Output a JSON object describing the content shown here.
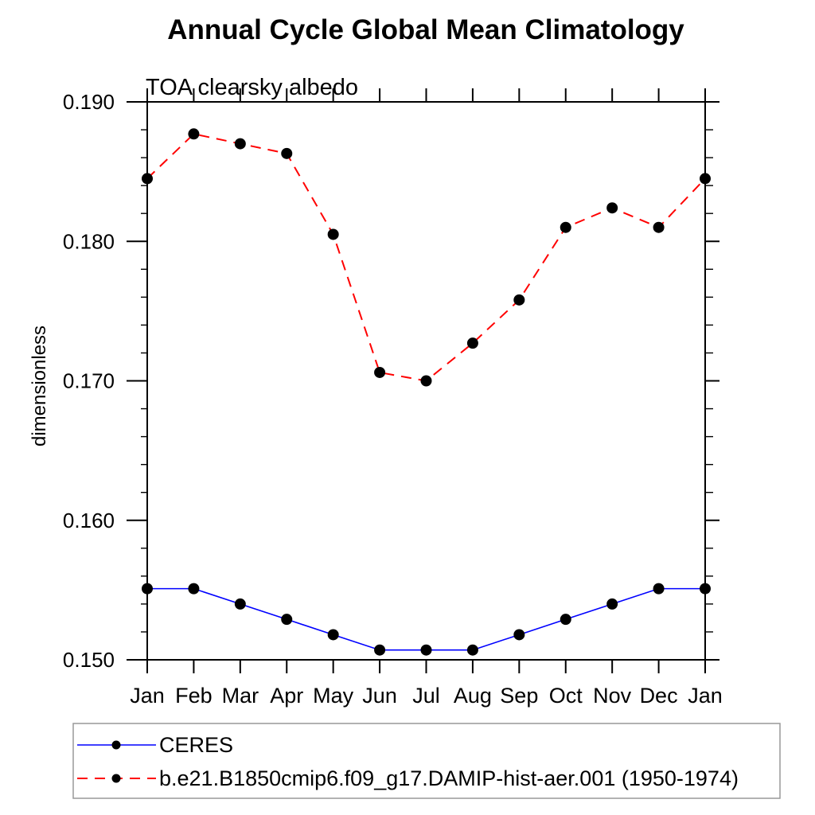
{
  "chart_data": {
    "type": "line",
    "title": "Annual Cycle Global Mean Climatology",
    "subtitle": "TOA clearsky albedo",
    "ylabel": "dimensionless",
    "x_categories": [
      "Jan",
      "Feb",
      "Mar",
      "Apr",
      "May",
      "Jun",
      "Jul",
      "Aug",
      "Sep",
      "Oct",
      "Nov",
      "Dec",
      "Jan"
    ],
    "ylim": [
      0.15,
      0.19
    ],
    "y_major_ticks": [
      0.15,
      0.16,
      0.17,
      0.18,
      0.19
    ],
    "y_tick_labels": [
      "0.150",
      "0.160",
      "0.170",
      "0.180",
      "0.190"
    ],
    "y_minor_tick_step": 0.002,
    "grid": false,
    "legend_position": "bottom-box",
    "marker_color": "#000000",
    "axis_color": "#000000",
    "legend_border_color": "#999999",
    "series": [
      {
        "name": "CERES",
        "color": "#0000ff",
        "line_style": "solid",
        "marker": "filled-circle",
        "values": [
          0.1551,
          0.1551,
          0.154,
          0.1529,
          0.1518,
          0.1507,
          0.1507,
          0.1507,
          0.1518,
          0.1529,
          0.154,
          0.1551,
          0.1551
        ]
      },
      {
        "name": "b.e21.B1850cmip6.f09_g17.DAMIP-hist-aer.001 (1950-1974)",
        "color": "#ff0000",
        "line_style": "dashed",
        "marker": "filled-circle",
        "values": [
          0.1845,
          0.1877,
          0.187,
          0.1863,
          0.1805,
          0.1706,
          0.17,
          0.1727,
          0.1758,
          0.181,
          0.1824,
          0.181,
          0.1845
        ]
      }
    ]
  }
}
